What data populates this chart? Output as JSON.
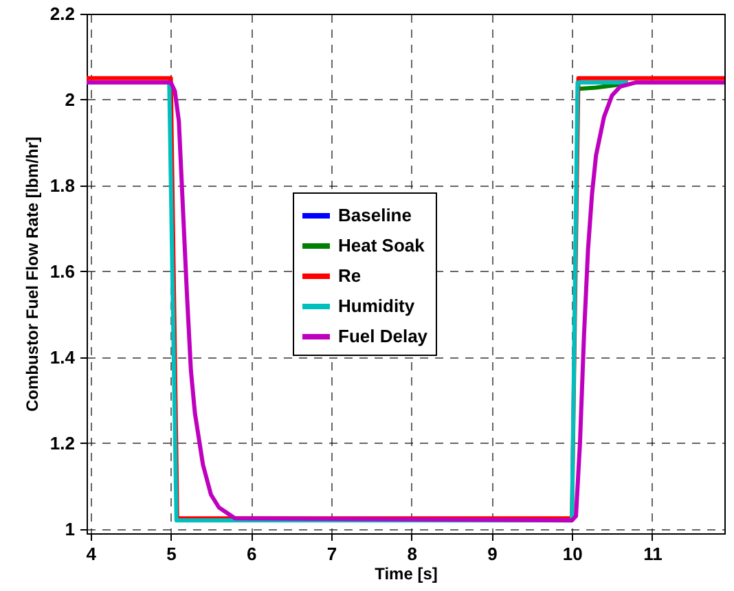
{
  "chart_data": {
    "type": "line",
    "xlabel": "Time [s]",
    "ylabel": "Combustor Fuel Flow Rate [lbm/hr]",
    "xlim": [
      3.95,
      11.9
    ],
    "ylim": [
      0.99,
      2.2
    ],
    "xticks": [
      4,
      5,
      6,
      7,
      8,
      9,
      10,
      11
    ],
    "yticks": [
      1,
      1.2,
      1.4,
      1.6,
      1.8,
      2,
      2.2
    ],
    "grid": true,
    "legend": "left",
    "line_style": "solid",
    "series": [
      {
        "name": "Baseline",
        "color": "#0000ff"
      },
      {
        "name": "Heat Soak",
        "color": "#008000",
        "x": [
          10.08,
          10.3,
          10.6
        ],
        "values": [
          2.025,
          2.028,
          2.035
        ]
      },
      {
        "name": "Re",
        "color": "#ff0000",
        "x": [
          3.95,
          5,
          5.08,
          10,
          10.08,
          11.9
        ],
        "values": [
          2.05,
          2.05,
          1.025,
          1.025,
          2.05,
          2.05
        ]
      },
      {
        "name": "Humidity",
        "color": "#00bfbf",
        "x": [
          4.98,
          5.07,
          10,
          10.07,
          10.7
        ],
        "values": [
          2.04,
          1.02,
          1.02,
          2.04,
          2.04
        ]
      },
      {
        "name": "Fuel Delay",
        "color": "#bf00bf",
        "x": [
          3.95,
          5,
          5.05,
          5.1,
          5.15,
          5.2,
          5.25,
          5.3,
          5.4,
          5.5,
          5.6,
          5.8,
          10,
          10.05,
          10.1,
          10.15,
          10.2,
          10.25,
          10.3,
          10.4,
          10.5,
          10.6,
          10.8,
          11.9
        ],
        "values": [
          2.04,
          2.04,
          2.02,
          1.95,
          1.75,
          1.55,
          1.37,
          1.27,
          1.15,
          1.08,
          1.05,
          1.025,
          1.02,
          1.03,
          1.2,
          1.45,
          1.65,
          1.78,
          1.87,
          1.96,
          2.01,
          2.03,
          2.04,
          2.04
        ]
      }
    ]
  }
}
